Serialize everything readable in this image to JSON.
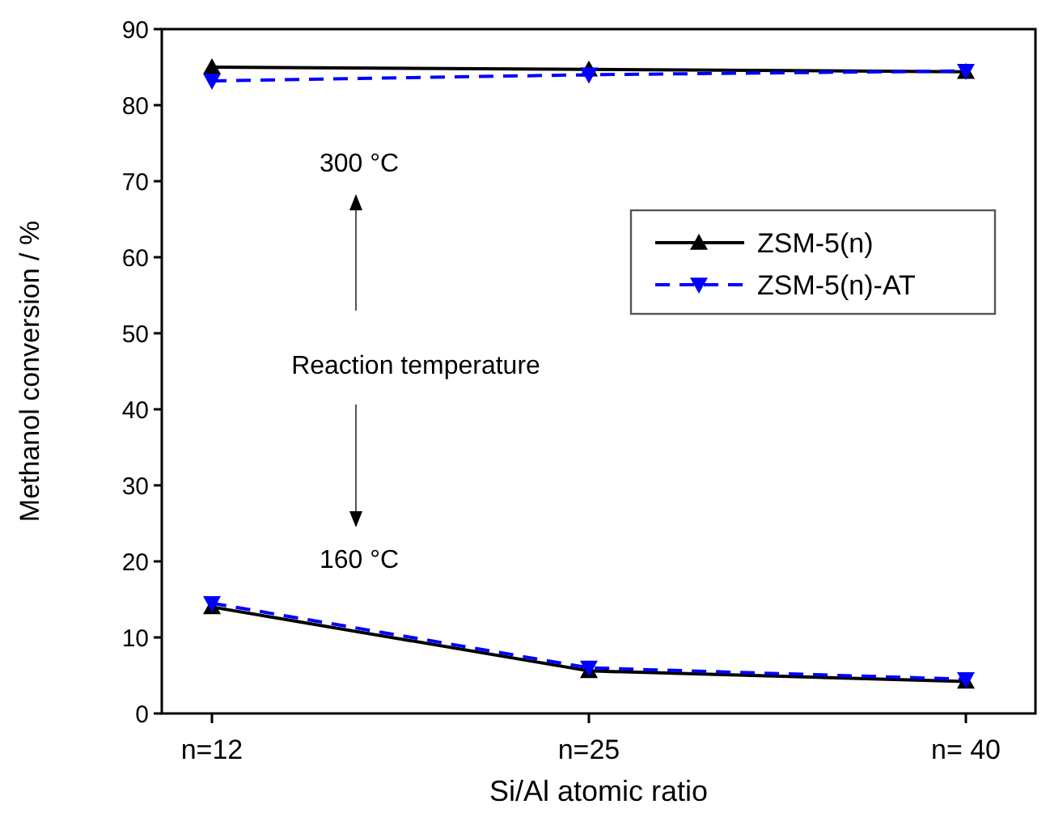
{
  "chart_data": {
    "type": "line",
    "xlabel": "Si/Al atomic ratio",
    "ylabel": "Methanol conversion / %",
    "categories": [
      "n=12",
      "n=25",
      "n= 40"
    ],
    "ylim": [
      0,
      90
    ],
    "yticks": [
      0,
      10,
      20,
      30,
      40,
      50,
      60,
      70,
      80,
      90
    ],
    "grid": false,
    "legend": "right",
    "series": [
      {
        "name": "ZSM-5(n)",
        "color": "#000000",
        "values": [
          85.0,
          84.7,
          84.4
        ],
        "marker": "triangle",
        "line_style": "solid"
      },
      {
        "name": "ZSM-5(n)-AT",
        "color": "#0000ff",
        "values": [
          83.2,
          84.0,
          84.5
        ],
        "marker": "triangle-down",
        "line_style": "dashed"
      },
      {
        "color": "#000000",
        "values": [
          14.0,
          5.6,
          4.2
        ],
        "marker": "triangle",
        "line_style": "solid"
      },
      {
        "color": "#0000ff",
        "values": [
          14.5,
          6.0,
          4.5
        ],
        "marker": "triangle-down",
        "line_style": "dashed"
      }
    ],
    "annotations": [
      "300 °C",
      "Reaction temperature",
      "160 °C"
    ]
  }
}
